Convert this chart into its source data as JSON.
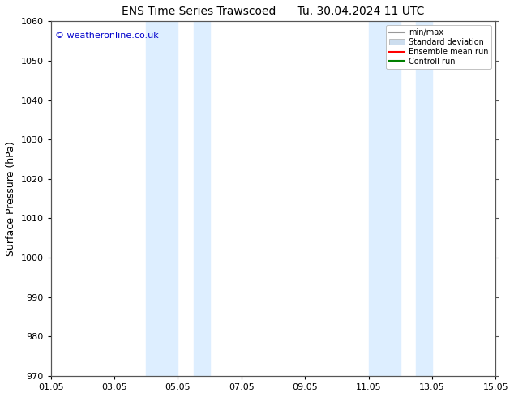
{
  "title_left": "ENS Time Series Trawscoed",
  "title_right": "Tu. 30.04.2024 11 UTC",
  "ylabel": "Surface Pressure (hPa)",
  "ylim": [
    970,
    1060
  ],
  "yticks": [
    970,
    980,
    990,
    1000,
    1010,
    1020,
    1030,
    1040,
    1050,
    1060
  ],
  "xlim_num": [
    0,
    14
  ],
  "xtick_positions": [
    0,
    2,
    4,
    6,
    8,
    10,
    12,
    14
  ],
  "xtick_labels": [
    "01.05",
    "03.05",
    "05.05",
    "07.05",
    "09.05",
    "11.05",
    "13.05",
    "15.05"
  ],
  "shaded_regions": [
    {
      "xmin": 3.0,
      "xmax": 4.0
    },
    {
      "xmin": 4.5,
      "xmax": 5.0
    },
    {
      "xmin": 10.0,
      "xmax": 11.0
    },
    {
      "xmin": 11.5,
      "xmax": 12.0
    }
  ],
  "shaded_color": "#ddeeff",
  "watermark_text": "© weatheronline.co.uk",
  "watermark_color": "#0000cc",
  "legend_entries": [
    {
      "label": "min/max",
      "color": "#999999",
      "linewidth": 1.5
    },
    {
      "label": "Standard deviation",
      "color": "#ccddee",
      "linewidth": 8
    },
    {
      "label": "Ensemble mean run",
      "color": "red",
      "linewidth": 1.5
    },
    {
      "label": "Controll run",
      "color": "green",
      "linewidth": 1.5
    }
  ],
  "background_color": "#ffffff",
  "plot_bg_color": "#ffffff",
  "title_fontsize": 10,
  "tick_fontsize": 8,
  "ylabel_fontsize": 9
}
